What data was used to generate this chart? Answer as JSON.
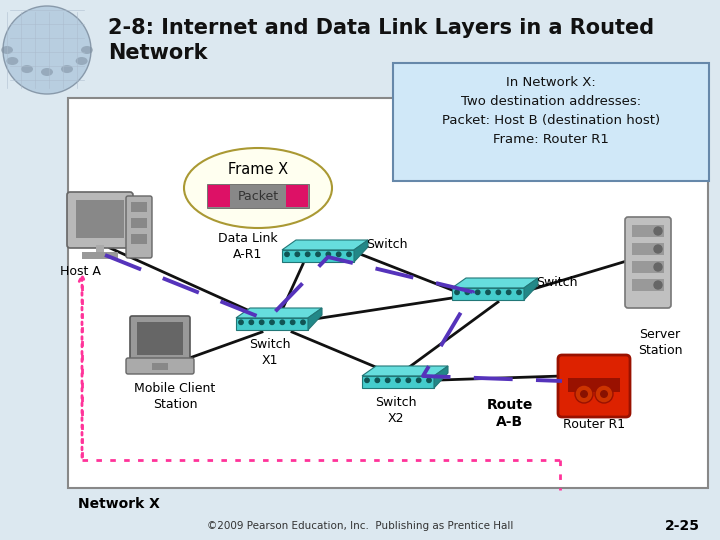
{
  "title_line1": "2-8: Internet and Data Link Layers in a Routed",
  "title_line2": "Network",
  "title_fontsize": 15,
  "bg_color": "#ffffff",
  "outer_bg": "#dce8f0",
  "panel_bg": "#ffffff",
  "info_box_text": "In Network X:\nTwo destination addresses:\nPacket: Host B (destination host)\nFrame: Router R1",
  "info_box_bg": "#d0e8f8",
  "frame_ellipse_bg": "#fffff0",
  "packet_color": "#dd1166",
  "packet_text_color": "#ffffff",
  "switch_top": "#66dddd",
  "switch_front": "#44cccc",
  "switch_side": "#228888",
  "router_body": "#dd2200",
  "router_dark": "#991100",
  "dashed_color": "#5533bb",
  "dotted_color": "#ff3399",
  "line_color": "#111111",
  "globe_color": "#c8d8e8",
  "label_fs": 9,
  "small_fs": 7.5
}
